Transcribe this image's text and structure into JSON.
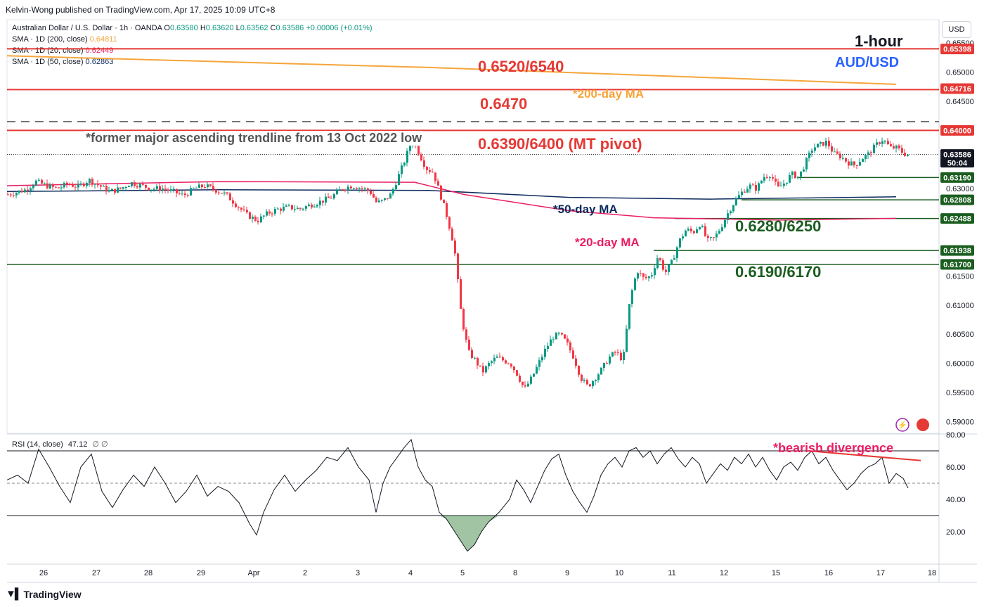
{
  "header": {
    "published_by": "Kelvin-Wong published on TradingView.com, Apr 17, 2025 10:09 UTC+8"
  },
  "legend": {
    "symbol": "Australian Dollar / U.S. Dollar · 1h · OANDA",
    "o_label": "O",
    "o_value": "0.63580",
    "h_label": "H",
    "h_value": "0.63620",
    "l_label": "L",
    "l_value": "0.63562",
    "c_label": "C",
    "c_value": "0.63586",
    "change": "+0.00006 (+0.01%)",
    "sma200_label": "SMA · 1D (200, close)",
    "sma200_value": "0.64811",
    "sma20_label": "SMA · 1D (20, close)",
    "sma20_value": "0.62449",
    "sma50_label": "SMA · 1D (50, close)",
    "sma50_value": "0.62863"
  },
  "currency_button": "USD",
  "title_block": {
    "timeframe": "1-hour",
    "pair": "AUD/USD"
  },
  "annotations": {
    "r1": "0.6520/6540",
    "r2": "0.6470",
    "r3": "0.6390/6400 (MT pivot)",
    "trendline": "*former major ascending trendline from 13 Oct 2022 low",
    "ma200": "*200-day MA",
    "ma50": "*50-day MA",
    "ma20": "*20-day MA",
    "s1": "0.6280/6250",
    "s2": "0.6190/6170",
    "divergence": "*bearish divergence"
  },
  "rsi_legend": {
    "label": "RSI (14, close)",
    "value": "47.12",
    "extra": "∅ ∅"
  },
  "footer": {
    "brand": "TradingView",
    "logo_icon": "tradingview-logo-icon"
  },
  "colors": {
    "up": "#089981",
    "down": "#f23645",
    "resistance": "#e53935",
    "support": "#1b5e20",
    "ma200": "#f6a53a",
    "ma50": "#0d2b5e",
    "ma20": "#e91e63",
    "rsi": "#131722",
    "title_blue": "#2962ff"
  },
  "chart_data": [
    {
      "type": "candlestick",
      "x_axis_ticks": [
        "26",
        "27",
        "28",
        "29",
        "Apr",
        "2",
        "3",
        "4",
        "5",
        "8",
        "9",
        "10",
        "11",
        "12",
        "15",
        "16",
        "17",
        "18"
      ],
      "y_axis_ticks": [
        "0.65500",
        "0.65000",
        "0.64500",
        "0.63000",
        "0.61500",
        "0.61000",
        "0.60500",
        "0.60000",
        "0.59500",
        "0.59000"
      ],
      "ylim": [
        0.588,
        0.659
      ],
      "price_tags": [
        {
          "label": "0.65398",
          "value": 0.65398,
          "color": "#e53935"
        },
        {
          "label": "0.64716",
          "value": 0.64716,
          "color": "#e53935"
        },
        {
          "label": "0.64000",
          "value": 0.64,
          "color": "#e53935"
        },
        {
          "label": "0.63586",
          "value": 0.63586,
          "color": "#131722",
          "sub": "50:04"
        },
        {
          "label": "0.63190",
          "value": 0.6319,
          "color": "#1b5e20"
        },
        {
          "label": "0.62808",
          "value": 0.62808,
          "color": "#1b5e20"
        },
        {
          "label": "0.62488",
          "value": 0.62488,
          "color": "#1b5e20"
        },
        {
          "label": "0.61938",
          "value": 0.61938,
          "color": "#1b5e20"
        },
        {
          "label": "0.61700",
          "value": 0.617,
          "color": "#1b5e20"
        }
      ],
      "levels": {
        "r1": 0.654,
        "r2": 0.647,
        "r3": 0.64,
        "s1": 0.625,
        "s2": 0.617,
        "current": 0.63586,
        "trendline": 0.6415
      },
      "close_path": [
        [
          0,
          0.629
        ],
        [
          25,
          0.6298
        ],
        [
          40,
          0.6312
        ],
        [
          55,
          0.6305
        ],
        [
          70,
          0.63
        ],
        [
          85,
          0.6308
        ],
        [
          100,
          0.6303
        ],
        [
          115,
          0.6315
        ],
        [
          130,
          0.6305
        ],
        [
          145,
          0.6295
        ],
        [
          160,
          0.63
        ],
        [
          175,
          0.631
        ],
        [
          190,
          0.6305
        ],
        [
          205,
          0.63
        ],
        [
          220,
          0.63
        ],
        [
          235,
          0.6295
        ],
        [
          250,
          0.6288
        ],
        [
          265,
          0.63
        ],
        [
          280,
          0.6305
        ],
        [
          295,
          0.6298
        ],
        [
          310,
          0.629
        ],
        [
          325,
          0.6272
        ],
        [
          340,
          0.6255
        ],
        [
          355,
          0.6245
        ],
        [
          370,
          0.6258
        ],
        [
          385,
          0.6265
        ],
        [
          400,
          0.6268
        ],
        [
          415,
          0.6265
        ],
        [
          430,
          0.6272
        ],
        [
          445,
          0.6278
        ],
        [
          460,
          0.6285
        ],
        [
          475,
          0.63
        ],
        [
          490,
          0.6305
        ],
        [
          505,
          0.63
        ],
        [
          515,
          0.6295
        ],
        [
          525,
          0.6275
        ],
        [
          535,
          0.628
        ],
        [
          545,
          0.629
        ],
        [
          555,
          0.632
        ],
        [
          565,
          0.635
        ],
        [
          575,
          0.6385
        ],
        [
          585,
          0.636
        ],
        [
          595,
          0.6335
        ],
        [
          605,
          0.6328
        ],
        [
          615,
          0.629
        ],
        [
          625,
          0.625
        ],
        [
          635,
          0.62
        ],
        [
          645,
          0.608
        ],
        [
          655,
          0.602
        ],
        [
          665,
          0.6005
        ],
        [
          675,
          0.5985
        ],
        [
          685,
          0.6
        ],
        [
          695,
          0.601
        ],
        [
          705,
          0.6005
        ],
        [
          715,
          0.6
        ],
        [
          725,
          0.598
        ],
        [
          735,
          0.5955
        ],
        [
          745,
          0.5975
        ],
        [
          755,
          0.6
        ],
        [
          765,
          0.6025
        ],
        [
          775,
          0.6045
        ],
        [
          785,
          0.605
        ],
        [
          795,
          0.6035
        ],
        [
          805,
          0.601
        ],
        [
          815,
          0.5975
        ],
        [
          825,
          0.596
        ],
        [
          835,
          0.5975
        ],
        [
          845,
          0.599
        ],
        [
          855,
          0.601
        ],
        [
          865,
          0.602
        ],
        [
          875,
          0.6005
        ],
        [
          885,
          0.611
        ],
        [
          895,
          0.616
        ],
        [
          905,
          0.6145
        ],
        [
          915,
          0.615
        ],
        [
          925,
          0.6185
        ],
        [
          935,
          0.6155
        ],
        [
          945,
          0.6175
        ],
        [
          955,
          0.621
        ],
        [
          965,
          0.623
        ],
        [
          975,
          0.6225
        ],
        [
          985,
          0.624
        ],
        [
          995,
          0.621
        ],
        [
          1005,
          0.6215
        ],
        [
          1015,
          0.6235
        ],
        [
          1025,
          0.626
        ],
        [
          1035,
          0.628
        ],
        [
          1045,
          0.6295
        ],
        [
          1055,
          0.6305
        ],
        [
          1065,
          0.63
        ],
        [
          1075,
          0.632
        ],
        [
          1085,
          0.6325
        ],
        [
          1095,
          0.63
        ],
        [
          1105,
          0.631
        ],
        [
          1115,
          0.6325
        ],
        [
          1125,
          0.632
        ],
        [
          1135,
          0.6345
        ],
        [
          1145,
          0.637
        ],
        [
          1155,
          0.6375
        ],
        [
          1165,
          0.638
        ],
        [
          1175,
          0.636
        ],
        [
          1185,
          0.6355
        ],
        [
          1195,
          0.6345
        ],
        [
          1205,
          0.634
        ],
        [
          1215,
          0.6352
        ],
        [
          1225,
          0.636
        ],
        [
          1235,
          0.6375
        ],
        [
          1245,
          0.6385
        ],
        [
          1255,
          0.637
        ],
        [
          1265,
          0.637
        ],
        [
          1275,
          0.636
        ],
        [
          1282,
          0.6358
        ]
      ],
      "ma200_path": [
        [
          0,
          0.6528
        ],
        [
          600,
          0.6508
        ],
        [
          1265,
          0.6479
        ]
      ],
      "ma50_path": [
        [
          0,
          0.6295
        ],
        [
          300,
          0.6298
        ],
        [
          600,
          0.6297
        ],
        [
          800,
          0.6285
        ],
        [
          1000,
          0.6282
        ],
        [
          1265,
          0.6286
        ]
      ],
      "ma20_path": [
        [
          0,
          0.6305
        ],
        [
          300,
          0.6312
        ],
        [
          580,
          0.6311
        ],
        [
          650,
          0.629
        ],
        [
          800,
          0.6262
        ],
        [
          920,
          0.625
        ],
        [
          1100,
          0.6246
        ],
        [
          1265,
          0.6249
        ]
      ]
    },
    {
      "type": "line",
      "name": "RSI (14, close)",
      "y_axis_ticks": [
        "80.00",
        "60.00",
        "40.00",
        "20.00"
      ],
      "ylim": [
        0,
        80
      ],
      "bands": {
        "upper": 70,
        "middle": 50,
        "lower": 30
      },
      "values_path": [
        [
          0,
          52
        ],
        [
          15,
          55
        ],
        [
          30,
          50
        ],
        [
          45,
          71
        ],
        [
          60,
          60
        ],
        [
          75,
          48
        ],
        [
          90,
          38
        ],
        [
          105,
          60
        ],
        [
          120,
          68
        ],
        [
          135,
          45
        ],
        [
          150,
          35
        ],
        [
          165,
          46
        ],
        [
          180,
          55
        ],
        [
          195,
          48
        ],
        [
          210,
          60
        ],
        [
          225,
          50
        ],
        [
          240,
          38
        ],
        [
          255,
          45
        ],
        [
          270,
          55
        ],
        [
          285,
          42
        ],
        [
          300,
          48
        ],
        [
          315,
          45
        ],
        [
          330,
          38
        ],
        [
          345,
          25
        ],
        [
          355,
          18
        ],
        [
          365,
          32
        ],
        [
          380,
          46
        ],
        [
          395,
          55
        ],
        [
          410,
          45
        ],
        [
          425,
          52
        ],
        [
          440,
          58
        ],
        [
          455,
          66
        ],
        [
          470,
          64
        ],
        [
          485,
          72
        ],
        [
          500,
          60
        ],
        [
          515,
          52
        ],
        [
          525,
          32
        ],
        [
          535,
          50
        ],
        [
          545,
          60
        ],
        [
          555,
          66
        ],
        [
          565,
          72
        ],
        [
          575,
          77
        ],
        [
          585,
          60
        ],
        [
          595,
          52
        ],
        [
          605,
          48
        ],
        [
          615,
          32
        ],
        [
          625,
          28
        ],
        [
          640,
          18
        ],
        [
          655,
          8
        ],
        [
          665,
          12
        ],
        [
          675,
          20
        ],
        [
          685,
          26
        ],
        [
          700,
          32
        ],
        [
          715,
          40
        ],
        [
          725,
          52
        ],
        [
          735,
          46
        ],
        [
          745,
          38
        ],
        [
          755,
          48
        ],
        [
          765,
          58
        ],
        [
          775,
          65
        ],
        [
          785,
          68
        ],
        [
          795,
          55
        ],
        [
          805,
          45
        ],
        [
          815,
          38
        ],
        [
          825,
          32
        ],
        [
          835,
          42
        ],
        [
          845,
          55
        ],
        [
          855,
          62
        ],
        [
          865,
          66
        ],
        [
          875,
          60
        ],
        [
          885,
          70
        ],
        [
          895,
          72
        ],
        [
          905,
          66
        ],
        [
          915,
          70
        ],
        [
          925,
          62
        ],
        [
          935,
          68
        ],
        [
          945,
          72
        ],
        [
          955,
          65
        ],
        [
          965,
          60
        ],
        [
          975,
          66
        ],
        [
          985,
          62
        ],
        [
          995,
          50
        ],
        [
          1005,
          56
        ],
        [
          1015,
          62
        ],
        [
          1025,
          58
        ],
        [
          1035,
          66
        ],
        [
          1045,
          62
        ],
        [
          1055,
          68
        ],
        [
          1065,
          60
        ],
        [
          1075,
          66
        ],
        [
          1085,
          58
        ],
        [
          1095,
          52
        ],
        [
          1105,
          60
        ],
        [
          1115,
          63
        ],
        [
          1125,
          58
        ],
        [
          1135,
          66
        ],
        [
          1145,
          70
        ],
        [
          1155,
          62
        ],
        [
          1165,
          66
        ],
        [
          1175,
          58
        ],
        [
          1185,
          52
        ],
        [
          1195,
          46
        ],
        [
          1205,
          50
        ],
        [
          1215,
          56
        ],
        [
          1225,
          60
        ],
        [
          1235,
          62
        ],
        [
          1245,
          66
        ],
        [
          1255,
          50
        ],
        [
          1265,
          56
        ],
        [
          1275,
          53
        ],
        [
          1282,
          47
        ]
      ],
      "divergence_line": [
        [
          1140,
          70
        ],
        [
          1300,
          64
        ]
      ]
    }
  ]
}
